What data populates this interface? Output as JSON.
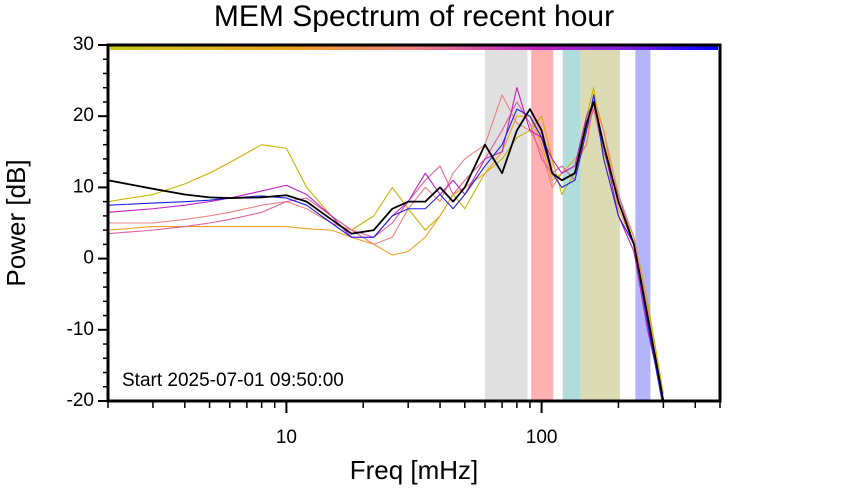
{
  "chart_data": {
    "type": "line",
    "title": "MEM Spectrum of recent hour",
    "x_label": "Freq [mHz]",
    "y_label": "Power [dB]",
    "annotation": "Start 2025-07-01 09:50:00",
    "xscale": "log",
    "xlim": [
      2,
      500
    ],
    "ylim": [
      -20,
      30
    ],
    "xticks": [
      10,
      100
    ],
    "xminorticks": [
      2,
      3,
      4,
      5,
      6,
      7,
      8,
      9,
      20,
      30,
      40,
      50,
      60,
      70,
      80,
      90,
      200,
      300,
      400,
      500
    ],
    "yticks": [
      -20,
      -10,
      0,
      10,
      20,
      30
    ],
    "yminorticks": [
      -18,
      -16,
      -14,
      -12,
      -8,
      -6,
      -4,
      -2,
      2,
      4,
      6,
      8,
      12,
      14,
      16,
      18,
      22,
      24,
      26,
      28
    ],
    "bands": [
      {
        "xlim": [
          60,
          88
        ],
        "color": "#e0e0e0"
      },
      {
        "xlim": [
          91,
          111
        ],
        "color": "#ffb0b0"
      },
      {
        "xlim": [
          121,
          142
        ],
        "color": "#b0dcdc"
      },
      {
        "xlim": [
          142,
          203
        ],
        "color": "#dcdcb4"
      },
      {
        "xlim": [
          233,
          267
        ],
        "color": "#b4b4f8"
      }
    ],
    "x": [
      2,
      3,
      4,
      5,
      6,
      8,
      10,
      12,
      15,
      18,
      22,
      26,
      30,
      35,
      40,
      45,
      50,
      60,
      70,
      80,
      90,
      100,
      110,
      120,
      135,
      150,
      160,
      175,
      200,
      230,
      260,
      300
    ],
    "series": [
      {
        "color": "#c8b400",
        "values": [
          8,
          9,
          10.5,
          12,
          13.5,
          16,
          15.5,
          10,
          6,
          4,
          6,
          10,
          7,
          4,
          6,
          9,
          7,
          12,
          14,
          17,
          18,
          20,
          14,
          9,
          12,
          20,
          24,
          15,
          8,
          3,
          -6,
          -19
        ]
      },
      {
        "color": "#f0a020",
        "values": [
          4,
          4.5,
          4.5,
          4.5,
          4.5,
          4.5,
          4.5,
          4.2,
          4,
          3,
          2,
          0.5,
          1,
          3,
          6,
          9,
          10,
          12,
          15,
          20,
          20,
          16,
          11,
          12,
          14,
          16,
          23,
          18,
          7,
          2,
          -8,
          -21
        ]
      },
      {
        "color": "#f08080",
        "values": [
          5,
          5,
          5.5,
          6,
          6.5,
          7.5,
          8,
          7,
          5,
          4,
          2,
          3,
          7,
          10,
          8,
          12,
          14,
          16,
          23,
          19,
          18,
          15,
          10,
          12,
          13,
          16,
          22,
          18,
          9,
          3,
          -7,
          -20
        ]
      },
      {
        "color": "#e060a0",
        "values": [
          3.5,
          4,
          4.5,
          5,
          5.5,
          6.5,
          8,
          8.5,
          6,
          4,
          3,
          5,
          8,
          11,
          13,
          9,
          11,
          14,
          18,
          22,
          19,
          14,
          12,
          13,
          11,
          18,
          21,
          15,
          9,
          2,
          -9,
          -21
        ]
      },
      {
        "color": "#c020c0",
        "values": [
          6.5,
          7,
          7.5,
          8,
          8.5,
          9.5,
          10.3,
          9,
          6,
          3,
          3,
          6,
          8,
          12,
          9,
          11,
          9,
          14,
          15,
          24,
          18,
          17,
          14,
          12,
          13,
          20,
          22,
          16,
          6,
          1,
          -10,
          -20
        ]
      },
      {
        "color": "#2020e0",
        "values": [
          7.5,
          7.8,
          8,
          8.2,
          8.5,
          8.8,
          8.5,
          7.5,
          5,
          3,
          3,
          6,
          7,
          7,
          9,
          7,
          9,
          13,
          16,
          21,
          20,
          17,
          12,
          10,
          11,
          18,
          23,
          14,
          6,
          2,
          -9,
          -21
        ]
      },
      {
        "color": "#000000",
        "values": [
          11,
          9.8,
          9,
          8.6,
          8.5,
          8.6,
          8.9,
          8,
          5.5,
          3.5,
          4,
          7,
          8,
          8,
          10,
          8,
          10,
          16,
          12,
          18,
          21,
          18,
          12,
          11,
          12,
          19,
          22,
          16,
          8,
          2,
          -8,
          -20
        ]
      }
    ]
  }
}
